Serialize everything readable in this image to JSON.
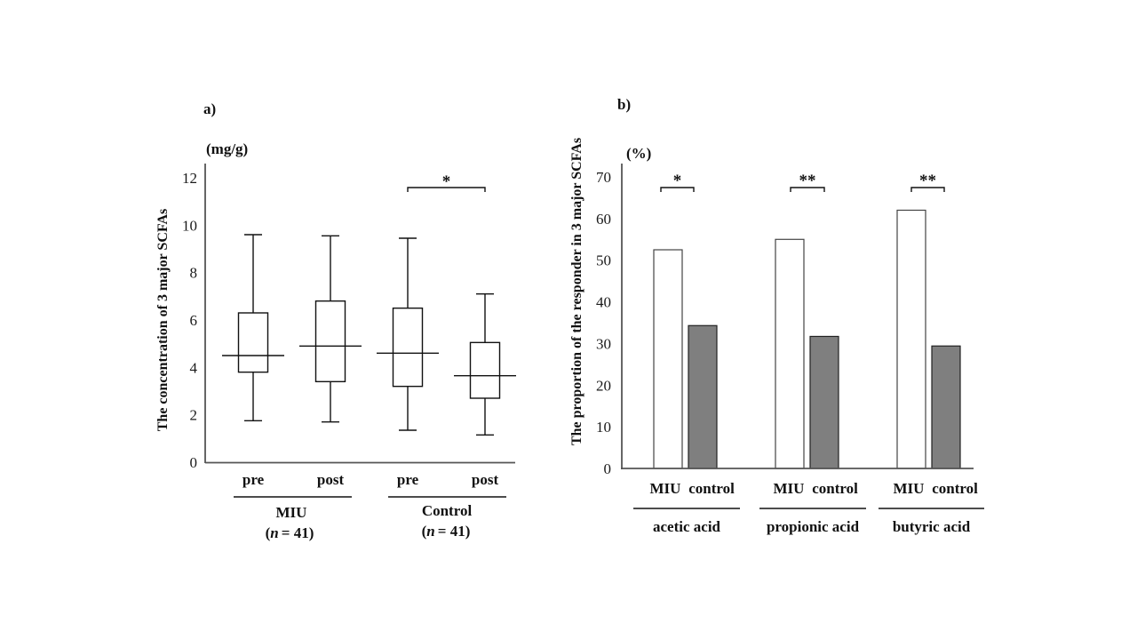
{
  "chart_data": [
    {
      "panel_label": "a)",
      "type": "box",
      "unit_label": "(mg/g)",
      "ylabel": "The concentration of 3 major SCFAs",
      "ylim": [
        0,
        12
      ],
      "yticks": [
        "0",
        "2",
        "4",
        "6",
        "8",
        "10",
        "12"
      ],
      "categories": [
        "pre",
        "post",
        "pre",
        "post"
      ],
      "groups": [
        {
          "name": "MIU",
          "n_label": "n",
          "n_value": "= 41)",
          "n_prefix": "("
        },
        {
          "name": "Control",
          "n_label": "n",
          "n_value": "= 41)",
          "n_prefix": "("
        }
      ],
      "boxes": [
        {
          "group": "MIU",
          "label": "pre",
          "min": 1.75,
          "q1": 3.8,
          "median": 4.5,
          "q3": 6.3,
          "max": 9.6
        },
        {
          "group": "MIU",
          "label": "post",
          "min": 1.7,
          "q1": 3.4,
          "median": 4.9,
          "q3": 6.8,
          "max": 9.55
        },
        {
          "group": "Control",
          "label": "pre",
          "min": 1.35,
          "q1": 3.2,
          "median": 4.6,
          "q3": 6.5,
          "max": 9.45
        },
        {
          "group": "Control",
          "label": "post",
          "min": 1.15,
          "q1": 2.7,
          "median": 3.65,
          "q3": 5.05,
          "max": 7.1
        }
      ],
      "significance": [
        {
          "between": [
            2,
            3
          ],
          "mark": "*",
          "level": 11.6
        }
      ]
    },
    {
      "panel_label": "b)",
      "type": "bar",
      "unit_label": "(%)",
      "ylabel": "The proportion of the responder in 3 major SCFAs",
      "ylim": [
        0,
        70
      ],
      "yticks": [
        "0",
        "10",
        "20",
        "30",
        "40",
        "50",
        "60",
        "70"
      ],
      "categories": [
        "acetic acid",
        "propionic acid",
        "butyric acid"
      ],
      "series": [
        {
          "name": "MIU",
          "color": "#ffffff",
          "values": [
            52.5,
            55.0,
            62.0
          ]
        },
        {
          "name": "control",
          "color": "#7f7f7f",
          "values": [
            34.3,
            31.7,
            29.4
          ]
        }
      ],
      "significance": [
        {
          "category": "acetic acid",
          "mark": "*"
        },
        {
          "category": "propionic acid",
          "mark": "**"
        },
        {
          "category": "butyric acid",
          "mark": "**"
        }
      ]
    }
  ]
}
